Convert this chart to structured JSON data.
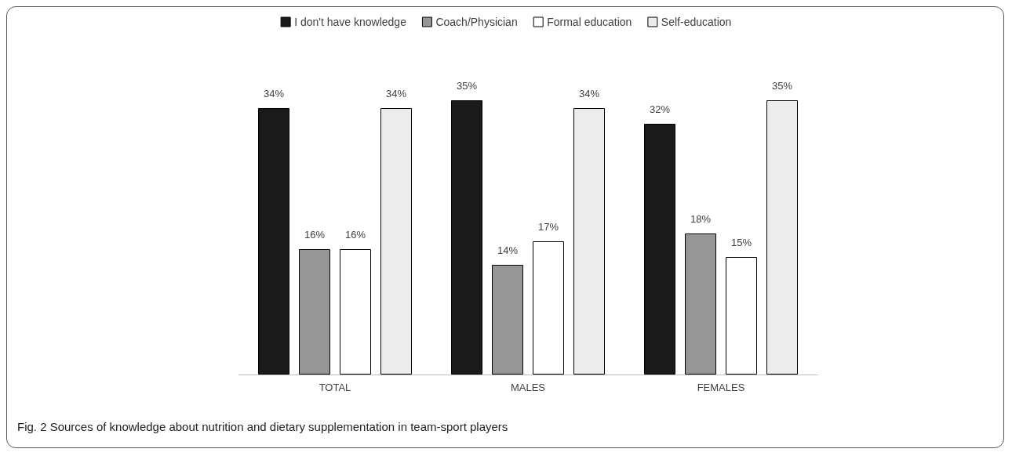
{
  "chart_data": {
    "type": "bar",
    "categories": [
      "TOTAL",
      "MALES",
      "FEMALES"
    ],
    "series": [
      {
        "name": "I don't have knowledge",
        "color": "#1a1a1a",
        "values": [
          34,
          35,
          32
        ],
        "value_labels": [
          "34%",
          "35%",
          "32%"
        ]
      },
      {
        "name": "Coach/Physician",
        "color": "#969696",
        "values": [
          16,
          14,
          18
        ],
        "value_labels": [
          "16%",
          "14%",
          "18%"
        ]
      },
      {
        "name": "Formal education",
        "color": "#ffffff",
        "values": [
          16,
          17,
          15
        ],
        "value_labels": [
          "16%",
          "17%",
          "15%"
        ]
      },
      {
        "name": "Self-education",
        "color": "#ececec",
        "values": [
          34,
          34,
          35
        ],
        "value_labels": [
          "34%",
          "34%",
          "35%"
        ]
      }
    ],
    "legend": "top",
    "annotations": [
      "Fig. 2 Sources of knowledge about nutrition and dietary supplementation in team-sport players"
    ]
  }
}
